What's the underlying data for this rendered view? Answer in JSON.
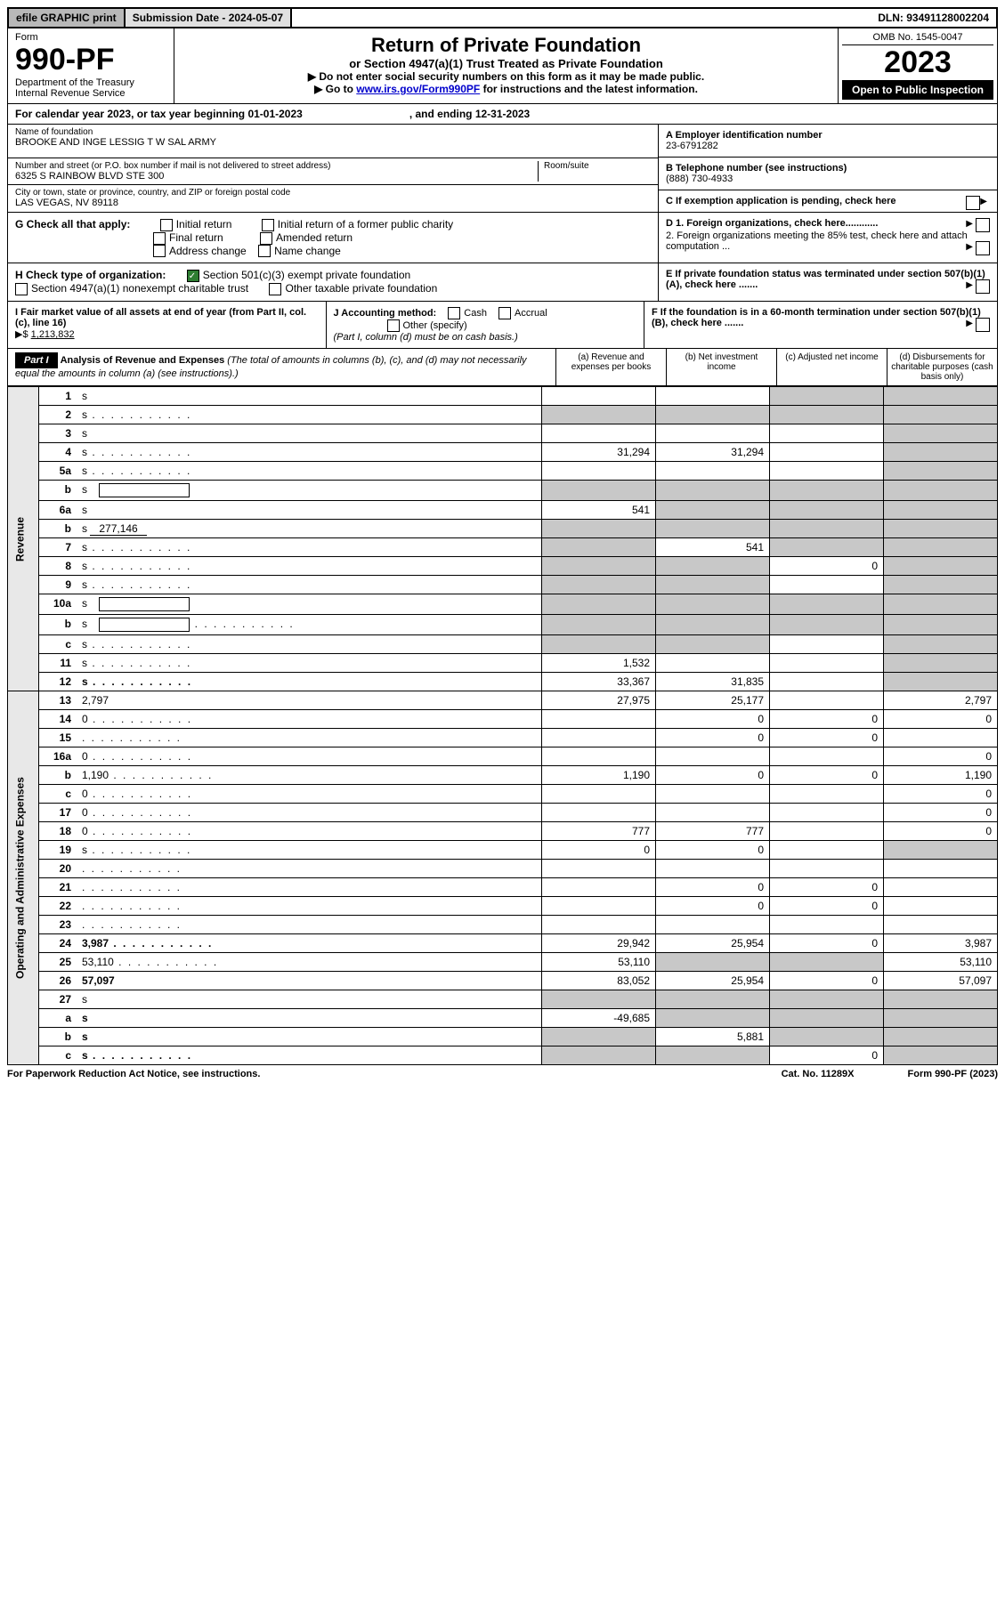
{
  "top": {
    "efile": "efile GRAPHIC print",
    "subdate_label": "Submission Date - 2024-05-07",
    "dln": "DLN: 93491128002204"
  },
  "header": {
    "form_word": "Form",
    "form_num": "990-PF",
    "dept": "Department of the Treasury",
    "irs": "Internal Revenue Service",
    "title": "Return of Private Foundation",
    "subtitle": "or Section 4947(a)(1) Trust Treated as Private Foundation",
    "note1": "▶ Do not enter social security numbers on this form as it may be made public.",
    "note2_pre": "▶ Go to ",
    "note2_link": "www.irs.gov/Form990PF",
    "note2_post": " for instructions and the latest information.",
    "omb": "OMB No. 1545-0047",
    "year": "2023",
    "open": "Open to Public Inspection"
  },
  "cal": {
    "pre": "For calendar year 2023, or tax year beginning 01-01-2023",
    "end": ", and ending 12-31-2023"
  },
  "entity": {
    "name_lab": "Name of foundation",
    "name_val": "BROOKE AND INGE LESSIG T W SAL ARMY",
    "addr_lab": "Number and street (or P.O. box number if mail is not delivered to street address)",
    "addr_val": "6325 S RAINBOW BLVD STE 300",
    "room_lab": "Room/suite",
    "city_lab": "City or town, state or province, country, and ZIP or foreign postal code",
    "city_val": "LAS VEGAS, NV  89118",
    "a_lab": "A Employer identification number",
    "a_val": "23-6791282",
    "b_lab": "B Telephone number (see instructions)",
    "b_val": "(888) 730-4933",
    "c_lab": "C If exemption application is pending, check here"
  },
  "g": {
    "lab": "G Check all that apply:",
    "initial": "Initial return",
    "final": "Final return",
    "address": "Address change",
    "initial_former": "Initial return of a former public charity",
    "amended": "Amended return",
    "name": "Name change"
  },
  "h": {
    "lab": "H Check type of organization:",
    "c3": "Section 501(c)(3) exempt private foundation",
    "trust": "Section 4947(a)(1) nonexempt charitable trust",
    "other": "Other taxable private foundation"
  },
  "d": {
    "d1": "D 1. Foreign organizations, check here............",
    "d2": "2. Foreign organizations meeting the 85% test, check here and attach computation ..."
  },
  "e": {
    "lab": "E  If private foundation status was terminated under section 507(b)(1)(A), check here ......."
  },
  "f": {
    "lab": "F  If the foundation is in a 60-month termination under section 507(b)(1)(B), check here ......."
  },
  "i": {
    "lab": "I Fair market value of all assets at end of year (from Part II, col. (c), line 16)",
    "arrow": "▶$",
    "val": "1,213,832"
  },
  "j": {
    "lab": "J Accounting method:",
    "cash": "Cash",
    "accrual": "Accrual",
    "other": "Other (specify)",
    "note": "(Part I, column (d) must be on cash basis.)"
  },
  "part1": {
    "label": "Part I",
    "title": "Analysis of Revenue and Expenses",
    "note": "(The total of amounts in columns (b), (c), and (d) may not necessarily equal the amounts in column (a) (see instructions).)",
    "col_a": "(a)   Revenue and expenses per books",
    "col_b": "(b)   Net investment income",
    "col_c": "(c)   Adjusted net income",
    "col_d": "(d)   Disbursements for charitable purposes (cash basis only)"
  },
  "sides": {
    "rev": "Revenue",
    "exp": "Operating and Administrative Expenses"
  },
  "rows": [
    {
      "n": "1",
      "d": "s",
      "a": "",
      "b": "",
      "c": "s"
    },
    {
      "n": "2",
      "d": "s",
      "bold_not": true,
      "a": "s",
      "b": "s",
      "c": "s",
      "dots": true
    },
    {
      "n": "3",
      "d": "s",
      "a": "",
      "b": "",
      "c": ""
    },
    {
      "n": "4",
      "d": "s",
      "a": "31,294",
      "b": "31,294",
      "c": "",
      "dots": true
    },
    {
      "n": "5a",
      "d": "s",
      "a": "",
      "b": "",
      "c": "",
      "dots": true
    },
    {
      "n": "b",
      "d": "s",
      "a": "s",
      "b": "s",
      "c": "s",
      "inline": true
    },
    {
      "n": "6a",
      "d": "s",
      "a": "541",
      "b": "s",
      "c": "s"
    },
    {
      "n": "b",
      "d": "s",
      "a": "s",
      "b": "s",
      "c": "s",
      "inline_val": "277,146"
    },
    {
      "n": "7",
      "d": "s",
      "a": "s",
      "b": "541",
      "c": "s",
      "dots": true
    },
    {
      "n": "8",
      "d": "s",
      "a": "s",
      "b": "s",
      "c": "0",
      "dots": true
    },
    {
      "n": "9",
      "d": "s",
      "a": "s",
      "b": "s",
      "c": "",
      "dots": true
    },
    {
      "n": "10a",
      "d": "s",
      "a": "s",
      "b": "s",
      "c": "s",
      "inline": true
    },
    {
      "n": "b",
      "d": "s",
      "a": "s",
      "b": "s",
      "c": "s",
      "inline": true,
      "dots": true
    },
    {
      "n": "c",
      "d": "s",
      "a": "s",
      "b": "s",
      "c": "",
      "dots": true
    },
    {
      "n": "11",
      "d": "s",
      "a": "1,532",
      "b": "",
      "c": "",
      "dots": true
    },
    {
      "n": "12",
      "d": "s",
      "a": "33,367",
      "b": "31,835",
      "c": "",
      "bold": true,
      "dots": true
    },
    {
      "n": "13",
      "d": "2,797",
      "a": "27,975",
      "b": "25,177",
      "c": ""
    },
    {
      "n": "14",
      "d": "0",
      "a": "",
      "b": "0",
      "c": "0",
      "dots": true
    },
    {
      "n": "15",
      "d": "",
      "a": "",
      "b": "0",
      "c": "0",
      "dots": true
    },
    {
      "n": "16a",
      "d": "0",
      "a": "",
      "b": "",
      "c": "",
      "dots": true
    },
    {
      "n": "b",
      "d": "1,190",
      "a": "1,190",
      "b": "0",
      "c": "0",
      "dots": true
    },
    {
      "n": "c",
      "d": "0",
      "a": "",
      "b": "",
      "c": "",
      "dots": true
    },
    {
      "n": "17",
      "d": "0",
      "a": "",
      "b": "",
      "c": "",
      "dots": true
    },
    {
      "n": "18",
      "d": "0",
      "a": "777",
      "b": "777",
      "c": "",
      "dots": true
    },
    {
      "n": "19",
      "d": "s",
      "a": "0",
      "b": "0",
      "c": "",
      "dots": true
    },
    {
      "n": "20",
      "d": "",
      "a": "",
      "b": "",
      "c": "",
      "dots": true
    },
    {
      "n": "21",
      "d": "",
      "a": "",
      "b": "0",
      "c": "0",
      "dots": true
    },
    {
      "n": "22",
      "d": "",
      "a": "",
      "b": "0",
      "c": "0",
      "dots": true
    },
    {
      "n": "23",
      "d": "",
      "a": "",
      "b": "",
      "c": "",
      "dots": true
    },
    {
      "n": "24",
      "d": "3,987",
      "a": "29,942",
      "b": "25,954",
      "c": "0",
      "bold": true,
      "dots": true
    },
    {
      "n": "25",
      "d": "53,110",
      "a": "53,110",
      "b": "s",
      "c": "s",
      "dots": true
    },
    {
      "n": "26",
      "d": "57,097",
      "a": "83,052",
      "b": "25,954",
      "c": "0",
      "bold": true
    },
    {
      "n": "27",
      "d": "s",
      "a": "s",
      "b": "s",
      "c": "s"
    },
    {
      "n": "a",
      "d": "s",
      "a": "-49,685",
      "b": "s",
      "c": "s",
      "bold": true
    },
    {
      "n": "b",
      "d": "s",
      "a": "s",
      "b": "5,881",
      "c": "s",
      "bold": true
    },
    {
      "n": "c",
      "d": "s",
      "a": "s",
      "b": "s",
      "c": "0",
      "bold": true,
      "dots": true
    }
  ],
  "footer": {
    "left": "For Paperwork Reduction Act Notice, see instructions.",
    "mid": "Cat. No. 11289X",
    "right": "Form 990-PF (2023)"
  }
}
